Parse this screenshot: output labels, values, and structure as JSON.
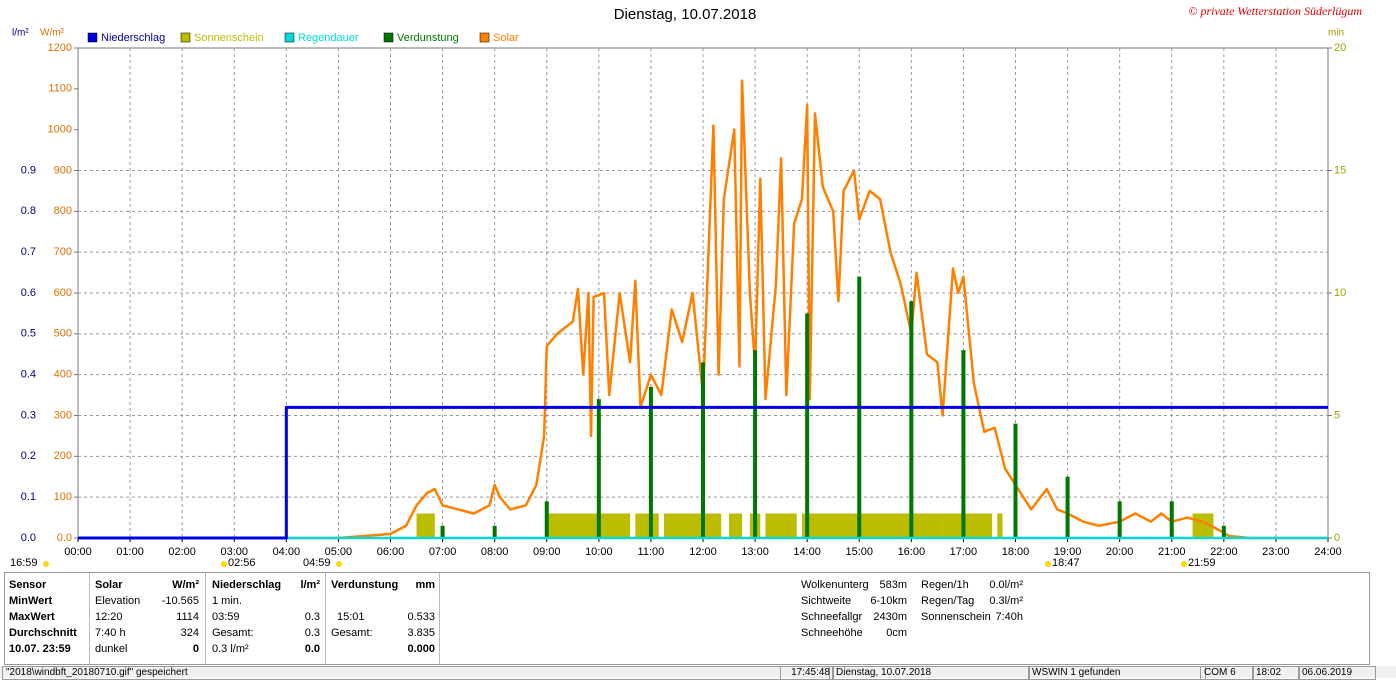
{
  "chart_data": {
    "type": "line",
    "title": "Dienstag, 10.07.2018",
    "copyright": "© private Wetterstation Süderlügum",
    "xlim": [
      0,
      24
    ],
    "xticks": [
      {
        "value": 0,
        "label": "00:00"
      },
      {
        "value": 1,
        "label": "01:00"
      },
      {
        "value": 2,
        "label": "02:00"
      },
      {
        "value": 3,
        "label": "03:00"
      },
      {
        "value": 4,
        "label": "04:00"
      },
      {
        "value": 5,
        "label": "05:00"
      },
      {
        "value": 6,
        "label": "06:00"
      },
      {
        "value": 7,
        "label": "07:00"
      },
      {
        "value": 8,
        "label": "08:00"
      },
      {
        "value": 9,
        "label": "09:00"
      },
      {
        "value": 10,
        "label": "10:00"
      },
      {
        "value": 11,
        "label": "11:00"
      },
      {
        "value": 12,
        "label": "12:00"
      },
      {
        "value": 13,
        "label": "13:00"
      },
      {
        "value": 14,
        "label": "14:00"
      },
      {
        "value": 15,
        "label": "15:00"
      },
      {
        "value": 16,
        "label": "16:00"
      },
      {
        "value": 17,
        "label": "17:00"
      },
      {
        "value": 18,
        "label": "18:00"
      },
      {
        "value": 19,
        "label": "19:00"
      },
      {
        "value": 20,
        "label": "20:00"
      },
      {
        "value": 21,
        "label": "21:00"
      },
      {
        "value": 22,
        "label": "22:00"
      },
      {
        "value": 23,
        "label": "23:00"
      },
      {
        "value": 24,
        "label": "24:00"
      }
    ],
    "y_label": "l/m²",
    "ylim": [
      0,
      1.2
    ],
    "yticks": [
      {
        "value": 0,
        "label": "0.0"
      },
      0.1,
      0.2,
      0.3,
      0.4,
      0.5,
      0.6,
      0.7,
      0.8,
      0.9
    ],
    "y3_label": "W/m²",
    "y3lim": [
      0,
      1200
    ],
    "y3ticks": [
      {
        "value": 0,
        "label": "0.0"
      },
      100,
      200,
      300,
      400,
      500,
      600,
      700,
      800,
      900,
      1000,
      1100,
      1200
    ],
    "y2_label": "min",
    "y2lim": [
      0,
      20
    ],
    "y2ticks": [
      0,
      5,
      10,
      15,
      20
    ],
    "grid": true,
    "series": [
      {
        "name": "Niederschlag",
        "color": "#0000e0",
        "type": "step",
        "x": [
          0,
          4,
          4,
          24
        ],
        "values": [
          0,
          0,
          0.32,
          0.32
        ]
      },
      {
        "name": "Sonnenschein",
        "color": "#bcbc00",
        "type": "bar",
        "axis": "y2",
        "x_start": [
          6.5,
          9.0,
          10.7,
          11.25,
          12.5,
          12.9,
          13.2,
          13.9,
          16.6,
          17.65,
          21.4
        ],
        "x_end": [
          6.85,
          10.6,
          11.15,
          12.35,
          12.75,
          13.1,
          13.8,
          16.6,
          17.55,
          17.75,
          21.8
        ],
        "values": [
          1,
          1,
          1,
          1,
          1,
          1,
          1,
          1,
          1,
          1,
          1
        ]
      },
      {
        "name": "Regendauer",
        "color": "#00d8d8",
        "type": "line",
        "axis": "y2",
        "x": [
          0,
          24
        ],
        "values": [
          0,
          0
        ]
      },
      {
        "name": "Verdunstung",
        "color": "#007800",
        "type": "bar",
        "x": [
          7,
          8,
          9,
          10,
          11,
          12,
          13,
          14,
          15,
          16,
          17,
          18,
          19,
          20,
          21,
          22
        ],
        "values": [
          0.03,
          0.03,
          0.09,
          0.34,
          0.37,
          0.43,
          0.46,
          0.55,
          0.64,
          0.58,
          0.46,
          0.28,
          0.15,
          0.09,
          0.09,
          0.03
        ]
      },
      {
        "name": "Solar",
        "color": "#ff8000",
        "type": "line",
        "axis": "y3",
        "x": [
          0,
          5,
          5.5,
          6,
          6.3,
          6.5,
          6.7,
          6.85,
          7,
          7.3,
          7.6,
          7.9,
          8,
          8.1,
          8.3,
          8.6,
          8.8,
          8.95,
          9,
          9.2,
          9.5,
          9.6,
          9.7,
          9.8,
          9.85,
          9.9,
          10.1,
          10.2,
          10.4,
          10.6,
          10.7,
          10.8,
          11,
          11.2,
          11.4,
          11.6,
          11.8,
          12,
          12.2,
          12.3,
          12.4,
          12.6,
          12.7,
          12.75,
          12.9,
          13,
          13.1,
          13.2,
          13.4,
          13.5,
          13.6,
          13.75,
          13.9,
          14,
          14.05,
          14.15,
          14.3,
          14.5,
          14.6,
          14.7,
          14.9,
          15,
          15.2,
          15.4,
          15.6,
          15.8,
          16,
          16.1,
          16.3,
          16.5,
          16.6,
          16.8,
          16.9,
          17,
          17.2,
          17.3,
          17.4,
          17.6,
          17.8,
          18,
          18.3,
          18.6,
          18.8,
          19,
          19.3,
          19.6,
          20,
          20.3,
          20.6,
          20.8,
          21,
          21.3,
          21.6,
          21.9,
          22.1,
          22.5,
          24
        ],
        "values": [
          0,
          0,
          5,
          10,
          30,
          80,
          110,
          120,
          80,
          70,
          60,
          80,
          130,
          100,
          70,
          80,
          130,
          250,
          470,
          500,
          530,
          610,
          400,
          600,
          250,
          590,
          600,
          350,
          600,
          430,
          630,
          320,
          400,
          350,
          560,
          480,
          600,
          350,
          1010,
          400,
          830,
          1000,
          420,
          1120,
          600,
          420,
          880,
          340,
          620,
          930,
          350,
          770,
          830,
          1060,
          340,
          1040,
          860,
          800,
          580,
          850,
          900,
          780,
          850,
          830,
          700,
          620,
          500,
          650,
          450,
          430,
          300,
          660,
          600,
          640,
          380,
          320,
          260,
          270,
          170,
          130,
          70,
          120,
          70,
          60,
          40,
          30,
          40,
          60,
          40,
          60,
          40,
          50,
          40,
          20,
          5,
          0,
          0
        ]
      }
    ],
    "annotations": [
      "16:59",
      "02:56",
      "04:59",
      "18:47",
      "21:59"
    ]
  },
  "stats": {
    "sensor": [
      "Sensor",
      "MinWert",
      "MaxWert",
      "Durchschnitt",
      "10.07. 23:59"
    ],
    "solar": {
      "header": [
        "Solar",
        "W/m²"
      ],
      "rows": [
        [
          "Elevation",
          "-10.565"
        ],
        [
          "12:20",
          "1114"
        ],
        [
          "7:40 h",
          "324"
        ],
        [
          "dunkel",
          "0"
        ]
      ]
    },
    "niederschlag": {
      "header": [
        "Niederschlag",
        "l/m²"
      ],
      "rows": [
        [
          "1 min."
        ],
        [
          "03:59",
          "0.3"
        ],
        [
          "Gesamt:",
          "0.3"
        ],
        [
          "0.3 l/m²",
          "0.0"
        ]
      ]
    },
    "verdunstung": {
      "header": [
        "Verdunstung",
        "mm"
      ],
      "rows": [
        [
          "15:01",
          "0.533"
        ],
        [
          "Gesamt:",
          "3.835"
        ],
        [
          "0.000"
        ]
      ]
    },
    "weather": [
      [
        "Wolkenunterg",
        "583m"
      ],
      [
        "Sichtweite",
        "6-10km"
      ],
      [
        "Schneefallgr",
        "2430m"
      ],
      [
        "Schneehöhe",
        "0cm"
      ]
    ],
    "rain": [
      [
        "Regen/1h",
        "0.0l/m²"
      ],
      [
        "Regen/Tag",
        "0.3l/m²"
      ],
      [
        "Sonnenschein",
        "7:40h"
      ]
    ]
  },
  "status": [
    "\"2018\\windbft_20180710.gif\" gespeichert",
    "17:45:48",
    "Dienstag, 10.07.2018",
    "WSWIN 1 gefunden",
    "COM 6",
    "18:02",
    "06.06.2019"
  ]
}
